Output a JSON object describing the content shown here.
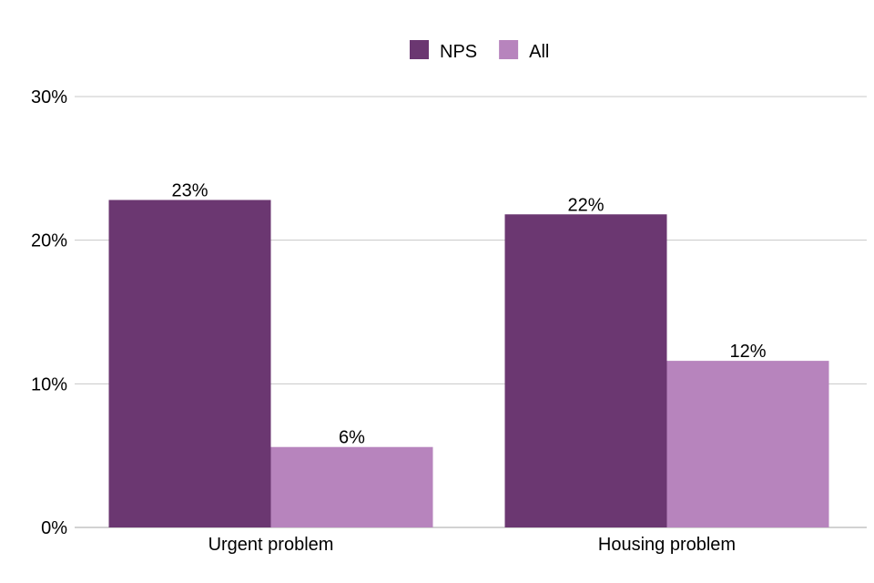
{
  "chart_data": {
    "type": "bar",
    "categories": [
      "Urgent problem",
      "Housing problem"
    ],
    "series": [
      {
        "name": "NPS",
        "values": [
          22.8,
          21.8
        ],
        "labels": [
          "23%",
          "22%"
        ],
        "color": "#6b3771"
      },
      {
        "name": "All",
        "values": [
          5.6,
          11.6
        ],
        "labels": [
          "6%",
          "12%"
        ],
        "color": "#b784bd"
      }
    ],
    "y_ticks": [
      {
        "value": 0,
        "label": "0%"
      },
      {
        "value": 10,
        "label": "10%"
      },
      {
        "value": 20,
        "label": "20%"
      },
      {
        "value": 30,
        "label": "30%"
      }
    ],
    "ylim": [
      0,
      30
    ],
    "grid": true,
    "legend_position": "top-center"
  }
}
